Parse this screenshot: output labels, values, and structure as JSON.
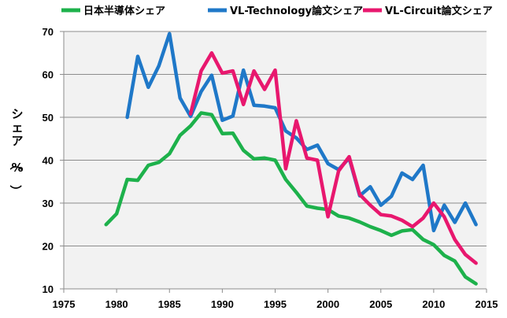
{
  "chart_data": {
    "type": "line",
    "ylabel": "シェア（%）",
    "xlim": [
      1975,
      2015
    ],
    "ylim": [
      10,
      70
    ],
    "x_ticks": [
      1975,
      1980,
      1985,
      1990,
      1995,
      2000,
      2005,
      2010,
      2015
    ],
    "y_ticks": [
      10,
      20,
      30,
      40,
      50,
      60,
      70
    ],
    "grid": true,
    "legend_position": "top",
    "series": [
      {
        "name": "日本半導体シェア",
        "color": "#1db14b",
        "points": [
          [
            1979,
            25.0
          ],
          [
            1980,
            27.5
          ],
          [
            1981,
            35.5
          ],
          [
            1982,
            35.3
          ],
          [
            1983,
            38.8
          ],
          [
            1984,
            39.5
          ],
          [
            1985,
            41.5
          ],
          [
            1986,
            45.8
          ],
          [
            1987,
            48.0
          ],
          [
            1988,
            51.0
          ],
          [
            1989,
            50.6
          ],
          [
            1990,
            46.2
          ],
          [
            1991,
            46.3
          ],
          [
            1992,
            42.3
          ],
          [
            1993,
            40.3
          ],
          [
            1994,
            40.5
          ],
          [
            1995,
            40.0
          ],
          [
            1996,
            35.5
          ],
          [
            1997,
            32.5
          ],
          [
            1998,
            29.3
          ],
          [
            1999,
            28.8
          ],
          [
            2000,
            28.5
          ],
          [
            2001,
            27.0
          ],
          [
            2002,
            26.5
          ],
          [
            2003,
            25.6
          ],
          [
            2004,
            24.5
          ],
          [
            2005,
            23.6
          ],
          [
            2006,
            22.5
          ],
          [
            2007,
            23.5
          ],
          [
            2008,
            23.8
          ],
          [
            2009,
            21.5
          ],
          [
            2010,
            20.3
          ],
          [
            2011,
            17.8
          ],
          [
            2012,
            16.5
          ],
          [
            2013,
            12.8
          ],
          [
            2014,
            11.2
          ]
        ]
      },
      {
        "name": "VL-Technology論文シェア",
        "color": "#1f78c8",
        "points": [
          [
            1981,
            50.0
          ],
          [
            1982,
            64.2
          ],
          [
            1983,
            57.0
          ],
          [
            1984,
            62.0
          ],
          [
            1985,
            69.5
          ],
          [
            1986,
            54.5
          ],
          [
            1987,
            50.2
          ],
          [
            1988,
            56.0
          ],
          [
            1989,
            59.8
          ],
          [
            1990,
            49.3
          ],
          [
            1991,
            50.3
          ],
          [
            1992,
            61.0
          ],
          [
            1993,
            52.8
          ],
          [
            1994,
            52.6
          ],
          [
            1995,
            52.2
          ],
          [
            1996,
            46.8
          ],
          [
            1997,
            45.2
          ],
          [
            1998,
            42.5
          ],
          [
            1999,
            43.5
          ],
          [
            2000,
            39.2
          ],
          [
            2001,
            37.8
          ],
          [
            2002,
            40.5
          ],
          [
            2003,
            31.7
          ],
          [
            2004,
            33.8
          ],
          [
            2005,
            29.5
          ],
          [
            2006,
            31.6
          ],
          [
            2007,
            37.0
          ],
          [
            2008,
            35.5
          ],
          [
            2009,
            38.8
          ],
          [
            2010,
            23.6
          ],
          [
            2011,
            29.5
          ],
          [
            2012,
            25.5
          ],
          [
            2013,
            30.0
          ],
          [
            2014,
            25.0
          ]
        ]
      },
      {
        "name": "VL-Circuit論文シェア",
        "color": "#e8176e",
        "points": [
          [
            1987,
            50.8
          ],
          [
            1988,
            60.8
          ],
          [
            1989,
            65.0
          ],
          [
            1990,
            60.3
          ],
          [
            1991,
            60.8
          ],
          [
            1992,
            53.0
          ],
          [
            1993,
            60.8
          ],
          [
            1994,
            56.5
          ],
          [
            1995,
            61.0
          ],
          [
            1996,
            38.0
          ],
          [
            1997,
            49.2
          ],
          [
            1998,
            40.5
          ],
          [
            1999,
            40.0
          ],
          [
            2000,
            26.8
          ],
          [
            2001,
            37.5
          ],
          [
            2002,
            40.8
          ],
          [
            2003,
            32.0
          ],
          [
            2004,
            29.5
          ],
          [
            2005,
            27.3
          ],
          [
            2006,
            27.0
          ],
          [
            2007,
            26.0
          ],
          [
            2008,
            24.5
          ],
          [
            2009,
            26.5
          ],
          [
            2010,
            30.0
          ],
          [
            2011,
            26.8
          ],
          [
            2012,
            21.5
          ],
          [
            2013,
            18.0
          ],
          [
            2014,
            16.0
          ]
        ]
      }
    ]
  }
}
